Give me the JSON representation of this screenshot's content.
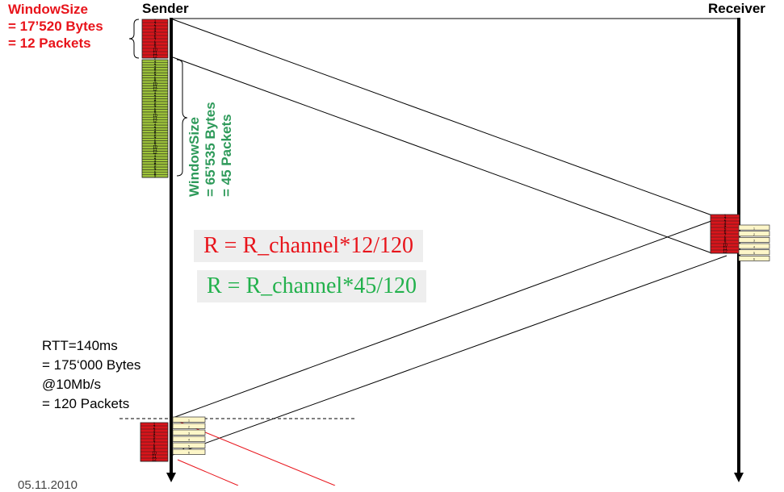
{
  "sender_label": "Sender",
  "receiver_label": "Receiver",
  "small_window": {
    "line1": "WindowSize",
    "line2": "= 17’520 Bytes",
    "line3": "= 12 Packets",
    "color": "#e8141b"
  },
  "large_window": {
    "line1": "WindowSize",
    "line2": "= 65’535 Bytes",
    "line3": "= 45 Packets",
    "color": "#2e9a5a"
  },
  "packet_numbers": [
    "1",
    "2",
    "3",
    "4",
    "5",
    "6",
    "7",
    "8",
    "9",
    "10",
    "11",
    "12"
  ],
  "formula_small": {
    "text": "R = R_channel*12/120",
    "color": "#e8141b"
  },
  "formula_large": {
    "text": "R = R_channel*45/120",
    "color": "#22b14c"
  },
  "rtt": {
    "line1": "RTT=140ms",
    "line2": "= 175‘000 Bytes",
    "line3": "@10Mb/s",
    "line4": "= 120 Packets"
  },
  "footer_date": "05.11.2010",
  "colors": {
    "red_block": "#d8141b",
    "green_block": "#9dc33a",
    "ack": "#fdf6c8"
  }
}
